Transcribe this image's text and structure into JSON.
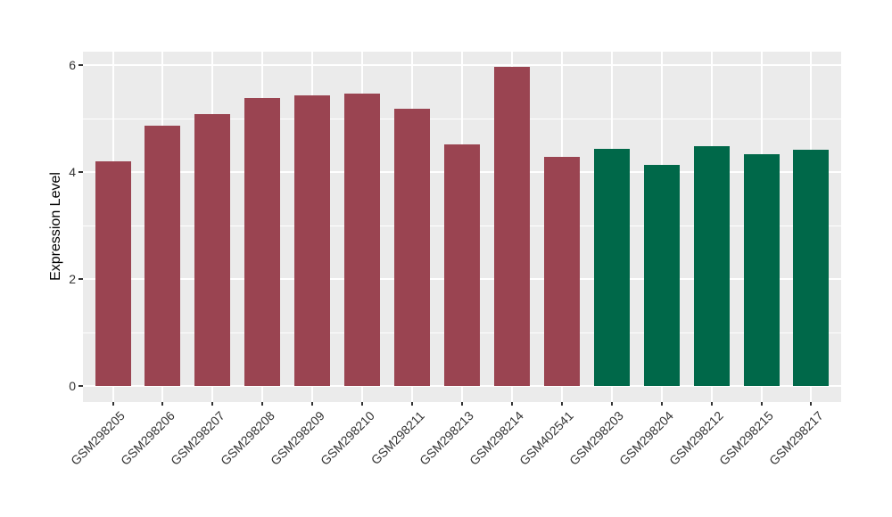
{
  "chart_data": {
    "type": "bar",
    "title": "",
    "xlabel": "",
    "ylabel": "Expression Level",
    "categories": [
      "GSM298205",
      "GSM298206",
      "GSM298207",
      "GSM298208",
      "GSM298209",
      "GSM298210",
      "GSM298211",
      "GSM298213",
      "GSM298214",
      "GSM402541",
      "GSM298203",
      "GSM298204",
      "GSM298212",
      "GSM298215",
      "GSM298217"
    ],
    "values": [
      4.2,
      4.86,
      5.09,
      5.39,
      5.44,
      5.47,
      5.19,
      4.51,
      5.96,
      4.28,
      4.43,
      4.13,
      4.49,
      4.34,
      4.41
    ],
    "bar_colors": [
      "#9a4451",
      "#9a4451",
      "#9a4451",
      "#9a4451",
      "#9a4451",
      "#9a4451",
      "#9a4451",
      "#9a4451",
      "#9a4451",
      "#9a4451",
      "#006849",
      "#006849",
      "#006849",
      "#006849",
      "#006849"
    ],
    "yticks_major": [
      0,
      2,
      4,
      6
    ],
    "yticks_minor": [
      1,
      3,
      5
    ],
    "ylim": [
      0,
      6.25
    ],
    "grid": "on",
    "legend": "none",
    "colors": {
      "bar_red": "#9a4451",
      "bar_green": "#006849",
      "panel_background": "#ebebeb",
      "gridline": "#ffffff",
      "axis_text": "#333333"
    }
  }
}
